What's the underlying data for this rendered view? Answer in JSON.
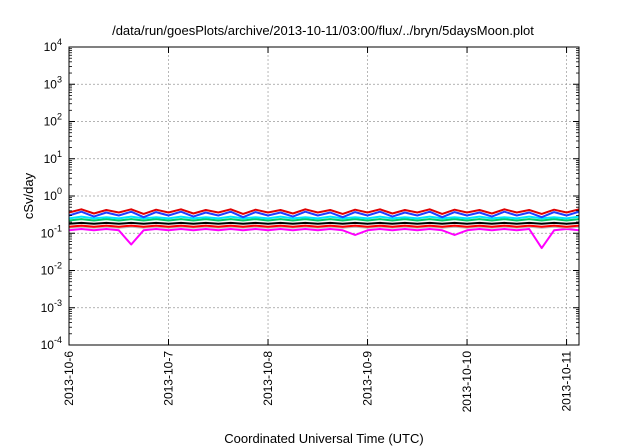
{
  "chart_data": {
    "type": "line",
    "title": "/data/run/goesPlots/archive/2013-10-11/03:00/flux/../bryn/5daysMoon.plot",
    "xlabel": "Coordinated Universal Time (UTC)",
    "ylabel": "cSv/day",
    "x_ticks": [
      "2013-10-6",
      "2013-10-7",
      "2013-10-8",
      "2013-10-9",
      "2013-10-10",
      "2013-10-11"
    ],
    "xlim": [
      "2013-10-06T00:00",
      "2013-10-11T03:00"
    ],
    "yscale": "log",
    "ylim": [
      0.0001,
      10000
    ],
    "y_ticks": [
      {
        "base": "10",
        "exp": "-4"
      },
      {
        "base": "10",
        "exp": "-3"
      },
      {
        "base": "10",
        "exp": "-2"
      },
      {
        "base": "10",
        "exp": "-1"
      },
      {
        "base": "10",
        "exp": "0"
      },
      {
        "base": "10",
        "exp": "1"
      },
      {
        "base": "10",
        "exp": "2"
      },
      {
        "base": "10",
        "exp": "3"
      },
      {
        "base": "10",
        "exp": "4"
      }
    ],
    "grid": true,
    "series": [
      {
        "color": "#ff00ff",
        "values": [
          0.12,
          0.13,
          0.12,
          0.13,
          0.12,
          0.05,
          0.12,
          0.13,
          0.12,
          0.13,
          0.12,
          0.13,
          0.12,
          0.13,
          0.12,
          0.13,
          0.12,
          0.13,
          0.12,
          0.13,
          0.12,
          0.13,
          0.12,
          0.09,
          0.12,
          0.13,
          0.12,
          0.13,
          0.12,
          0.13,
          0.12,
          0.09,
          0.12,
          0.13,
          0.12,
          0.13,
          0.12,
          0.13,
          0.04,
          0.12,
          0.13,
          0.12
        ]
      },
      {
        "color": "#c0c0c0",
        "values": [
          0.14,
          0.15,
          0.14,
          0.15,
          0.14,
          0.15,
          0.14,
          0.15,
          0.14,
          0.15,
          0.14,
          0.15,
          0.14,
          0.15,
          0.14,
          0.15,
          0.14,
          0.15,
          0.14,
          0.15,
          0.14,
          0.15,
          0.14,
          0.15,
          0.14,
          0.15,
          0.14,
          0.15,
          0.14,
          0.15,
          0.14,
          0.15,
          0.14,
          0.15,
          0.14,
          0.15,
          0.14,
          0.15,
          0.14,
          0.15,
          0.14,
          0.15
        ]
      },
      {
        "color": "#ff0000",
        "values": [
          0.15,
          0.16,
          0.15,
          0.16,
          0.15,
          0.16,
          0.15,
          0.16,
          0.15,
          0.16,
          0.15,
          0.16,
          0.15,
          0.16,
          0.15,
          0.16,
          0.15,
          0.16,
          0.15,
          0.16,
          0.15,
          0.16,
          0.15,
          0.16,
          0.15,
          0.16,
          0.15,
          0.16,
          0.15,
          0.16,
          0.15,
          0.16,
          0.15,
          0.16,
          0.15,
          0.16,
          0.15,
          0.16,
          0.15,
          0.16,
          0.15,
          0.16
        ]
      },
      {
        "color": "#000000",
        "values": [
          0.18,
          0.19,
          0.18,
          0.19,
          0.18,
          0.19,
          0.18,
          0.19,
          0.18,
          0.19,
          0.18,
          0.19,
          0.18,
          0.19,
          0.18,
          0.19,
          0.18,
          0.19,
          0.18,
          0.19,
          0.18,
          0.19,
          0.18,
          0.19,
          0.18,
          0.19,
          0.18,
          0.19,
          0.18,
          0.19,
          0.18,
          0.19,
          0.18,
          0.19,
          0.18,
          0.19,
          0.18,
          0.19,
          0.18,
          0.19,
          0.18,
          0.19
        ]
      },
      {
        "color": "#00cc66",
        "values": [
          0.22,
          0.24,
          0.22,
          0.24,
          0.22,
          0.24,
          0.22,
          0.24,
          0.22,
          0.24,
          0.22,
          0.24,
          0.22,
          0.24,
          0.22,
          0.24,
          0.22,
          0.24,
          0.22,
          0.24,
          0.22,
          0.24,
          0.22,
          0.24,
          0.22,
          0.24,
          0.22,
          0.24,
          0.22,
          0.24,
          0.22,
          0.24,
          0.22,
          0.24,
          0.22,
          0.24,
          0.22,
          0.24,
          0.22,
          0.24,
          0.22,
          0.24
        ]
      },
      {
        "color": "#00e5ff",
        "values": [
          0.25,
          0.28,
          0.25,
          0.27,
          0.25,
          0.28,
          0.25,
          0.27,
          0.25,
          0.28,
          0.25,
          0.27,
          0.25,
          0.28,
          0.25,
          0.27,
          0.25,
          0.28,
          0.25,
          0.27,
          0.25,
          0.28,
          0.25,
          0.27,
          0.25,
          0.28,
          0.25,
          0.27,
          0.25,
          0.28,
          0.25,
          0.27,
          0.25,
          0.28,
          0.25,
          0.27,
          0.25,
          0.28,
          0.25,
          0.27,
          0.25,
          0.28
        ]
      },
      {
        "color": "#1e40ff",
        "values": [
          0.3,
          0.38,
          0.28,
          0.36,
          0.3,
          0.38,
          0.27,
          0.37,
          0.3,
          0.38,
          0.28,
          0.36,
          0.3,
          0.38,
          0.27,
          0.37,
          0.3,
          0.36,
          0.28,
          0.38,
          0.3,
          0.36,
          0.27,
          0.37,
          0.3,
          0.38,
          0.28,
          0.36,
          0.3,
          0.38,
          0.27,
          0.37,
          0.3,
          0.36,
          0.28,
          0.38,
          0.3,
          0.36,
          0.27,
          0.37,
          0.3,
          0.38
        ]
      },
      {
        "color": "#e00000",
        "values": [
          0.36,
          0.44,
          0.34,
          0.42,
          0.36,
          0.44,
          0.33,
          0.43,
          0.36,
          0.44,
          0.34,
          0.42,
          0.36,
          0.44,
          0.33,
          0.43,
          0.36,
          0.42,
          0.34,
          0.44,
          0.36,
          0.42,
          0.33,
          0.43,
          0.36,
          0.44,
          0.34,
          0.42,
          0.36,
          0.44,
          0.33,
          0.43,
          0.36,
          0.42,
          0.34,
          0.44,
          0.36,
          0.42,
          0.33,
          0.43,
          0.36,
          0.44
        ]
      }
    ]
  }
}
